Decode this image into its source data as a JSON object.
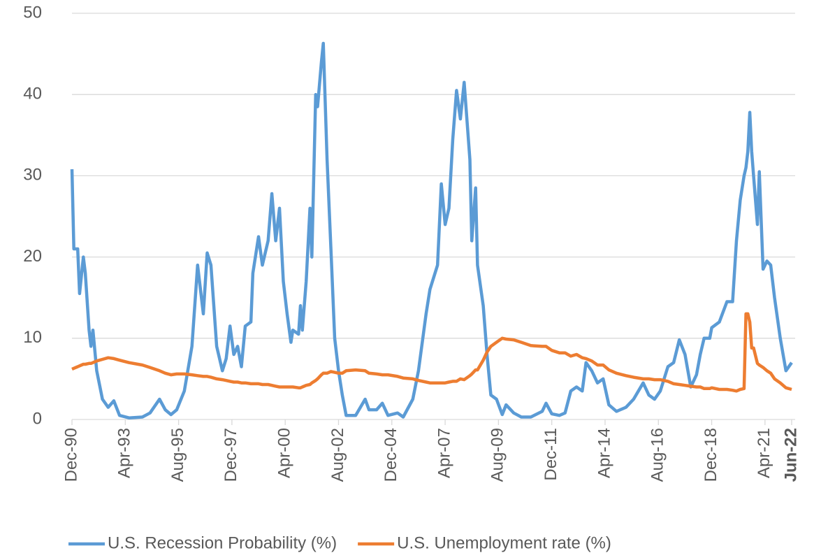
{
  "chart_data": {
    "type": "line",
    "x": [
      "Dec-90",
      "Jan-91",
      "Mar-91",
      "Apr-91",
      "Jun-91",
      "Jul-91",
      "Sep-91",
      "Oct-91",
      "Nov-91",
      "Jan-92",
      "Apr-92",
      "Jul-92",
      "Oct-92",
      "Jan-93",
      "Jun-93",
      "Jan-94",
      "May-94",
      "Oct-94",
      "Jan-95",
      "Apr-95",
      "Jul-95",
      "Nov-95",
      "Mar-96",
      "Jun-96",
      "Sep-96",
      "Nov-96",
      "Jan-97",
      "Apr-97",
      "Jul-97",
      "Sep-97",
      "Nov-97",
      "Jan-98",
      "Mar-98",
      "May-98",
      "Jul-98",
      "Oct-98",
      "Nov-98",
      "Feb-99",
      "Apr-99",
      "Jul-99",
      "Sep-99",
      "Nov-99",
      "Jan-00",
      "Mar-00",
      "May-00",
      "Jul-00",
      "Aug-00",
      "Nov-00",
      "Dec-00",
      "Jan-01",
      "Mar-01",
      "May-01",
      "Jun-01",
      "Aug-01",
      "Sep-01",
      "Nov-01",
      "Dec-01",
      "Feb-02",
      "Apr-02",
      "Jun-02",
      "Aug-02",
      "Oct-02",
      "Dec-02",
      "May-03",
      "Oct-03",
      "Dec-03",
      "Apr-04",
      "Jul-04",
      "Oct-04",
      "Mar-05",
      "Jun-05",
      "Nov-05",
      "Feb-06",
      "Jun-06",
      "Aug-06",
      "Dec-06",
      "Feb-07",
      "Apr-07",
      "Jun-07",
      "Aug-07",
      "Oct-07",
      "Dec-07",
      "Feb-08",
      "May-08",
      "Jun-08",
      "Aug-08",
      "Sep-08",
      "Dec-08",
      "Feb-09",
      "Apr-09",
      "Jul-09",
      "Oct-09",
      "Dec-09",
      "Apr-10",
      "Aug-10",
      "Jan-11",
      "Jul-11",
      "Sep-11",
      "Dec-11",
      "Apr-12",
      "Jul-12",
      "Oct-12",
      "Jan-13",
      "Apr-13",
      "Jun-13",
      "Sep-13",
      "Dec-13",
      "Mar-14",
      "Jun-14",
      "Oct-14",
      "Mar-15",
      "Jul-15",
      "Dec-15",
      "Mar-16",
      "Jun-16",
      "Sep-16",
      "Jan-17",
      "Apr-17",
      "Jul-17",
      "Oct-17",
      "Jan-18",
      "Apr-18",
      "Jun-18",
      "Aug-18",
      "Nov-18",
      "Dec-18",
      "Apr-19",
      "Aug-19",
      "Nov-19",
      "Jan-20",
      "Mar-20",
      "May-20",
      "Jun-20",
      "Jul-20",
      "Aug-20",
      "Sep-20",
      "Oct-20",
      "Dec-20",
      "Jan-21",
      "Mar-21",
      "May-21",
      "Jul-21",
      "Sep-21",
      "Dec-21",
      "Mar-22",
      "Jun-22"
    ],
    "series": [
      {
        "name": "U.S. Recession Probability (%)",
        "color": "#5b9bd5",
        "values": [
          30.8,
          21,
          21,
          15.5,
          20,
          18,
          11,
          9,
          11,
          6,
          2.5,
          1.5,
          2.3,
          0.5,
          0.2,
          0.3,
          0.8,
          2.5,
          1.2,
          0.6,
          1.2,
          3.5,
          9,
          19,
          13,
          20.5,
          19,
          9,
          6,
          7.5,
          11.5,
          8,
          9,
          6.5,
          11.5,
          12,
          18,
          22.5,
          19,
          22,
          27.8,
          22,
          26,
          17,
          13,
          9.5,
          11,
          10.5,
          14,
          11,
          17,
          26,
          20,
          40,
          38.5,
          44,
          46.3,
          32,
          21,
          10,
          6,
          3,
          0.5,
          0.5,
          2.5,
          1.2,
          1.2,
          2,
          0.5,
          0.8,
          0.3,
          2.5,
          6,
          13,
          16,
          19,
          29,
          24,
          26,
          34.5,
          40.5,
          37,
          41.5,
          32,
          22,
          28.5,
          19,
          14,
          8,
          3,
          2.5,
          0.6,
          1.8,
          0.8,
          0.3,
          0.3,
          1,
          2,
          0.7,
          0.5,
          0.8,
          3.5,
          4,
          3.5,
          7,
          6,
          4.5,
          5,
          1.8,
          1,
          1.5,
          2.5,
          4.5,
          3,
          2.5,
          3.5,
          6.5,
          7,
          9.8,
          8,
          4,
          5.5,
          8,
          10,
          10,
          11.3,
          12,
          14.5,
          14.5,
          22,
          27,
          30,
          31,
          33,
          37.8,
          33,
          30,
          24,
          30.5,
          18.5,
          19.5,
          19,
          15,
          10,
          6,
          7
        ]
      },
      {
        "name": "U.S. Unemployment rate (%)",
        "color": "#ed7d31",
        "values": [
          6.2,
          6.3,
          6.5,
          6.6,
          6.8,
          6.8,
          6.9,
          6.9,
          7.0,
          7.2,
          7.4,
          7.6,
          7.5,
          7.3,
          7.0,
          6.7,
          6.4,
          6.0,
          5.7,
          5.5,
          5.6,
          5.6,
          5.5,
          5.4,
          5.3,
          5.3,
          5.2,
          5.0,
          4.9,
          4.8,
          4.7,
          4.6,
          4.6,
          4.5,
          4.5,
          4.4,
          4.4,
          4.4,
          4.3,
          4.3,
          4.2,
          4.1,
          4.0,
          4.0,
          4.0,
          4.0,
          4.0,
          3.9,
          3.9,
          4.0,
          4.2,
          4.3,
          4.5,
          4.8,
          5.0,
          5.5,
          5.7,
          5.7,
          5.9,
          5.8,
          5.7,
          5.7,
          6.0,
          6.1,
          6.0,
          5.7,
          5.6,
          5.5,
          5.5,
          5.3,
          5.1,
          5.0,
          4.8,
          4.6,
          4.5,
          4.5,
          4.5,
          4.5,
          4.6,
          4.7,
          4.7,
          5.0,
          4.9,
          5.4,
          5.6,
          6.1,
          6.1,
          7.3,
          8.3,
          9.0,
          9.5,
          10.0,
          9.9,
          9.8,
          9.5,
          9.1,
          9.0,
          9.0,
          8.5,
          8.2,
          8.2,
          7.8,
          8.0,
          7.6,
          7.5,
          7.2,
          6.7,
          6.7,
          6.1,
          5.7,
          5.4,
          5.2,
          5.0,
          5.0,
          4.9,
          4.9,
          4.7,
          4.4,
          4.3,
          4.2,
          4.1,
          4.0,
          4.0,
          3.8,
          3.8,
          3.9,
          3.7,
          3.7,
          3.6,
          3.5,
          3.7,
          3.8,
          13,
          13,
          12,
          8.8,
          8.8,
          6.9,
          6.7,
          6.4,
          6.0,
          5.7,
          5.0,
          4.5,
          3.9,
          3.7
        ]
      }
    ],
    "xlim": [
      "Dec-90",
      "Jun-22"
    ],
    "xticks": [
      "Dec-90",
      "Apr-93",
      "Aug-95",
      "Dec-97",
      "Apr-00",
      "Aug-02",
      "Dec-04",
      "Apr-07",
      "Aug-09",
      "Dec-11",
      "Apr-14",
      "Aug-16",
      "Dec-18",
      "Apr-21",
      "Jun-22"
    ],
    "ylim": [
      0,
      50
    ],
    "yticks": [
      0,
      10,
      20,
      30,
      40,
      50
    ],
    "grid": true,
    "legend": "bottom"
  }
}
